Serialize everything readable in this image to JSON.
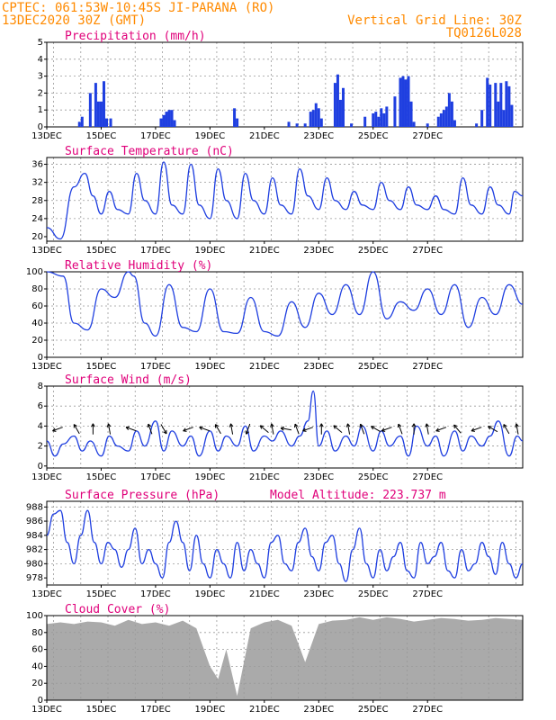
{
  "header": {
    "line1": "CPTEC:   061:53W-10:45S   JI-PARANA (RO)",
    "line2": "13DEC2020 30Z (GMT)",
    "right1": "Vertical Grid Line: 30Z",
    "right2": "TQ0126L028"
  },
  "x_ticks": [
    "13DEC",
    "15DEC",
    "17DEC",
    "19DEC",
    "21DEC",
    "23DEC",
    "25DEC",
    "27DEC"
  ],
  "colors": {
    "line": "#1f3fe0",
    "bar": "#1f3fe0",
    "cloud": "#aaaaaa",
    "title": "#e0007a",
    "header": "#ff8a00"
  },
  "chart_data": [
    {
      "id": "precip",
      "type": "bar",
      "title": "Precipitation (mm/h)",
      "ylim": [
        0,
        5
      ],
      "yticks": [
        0,
        1,
        2,
        3,
        4,
        5
      ],
      "x_days": [
        1.2,
        1.3,
        1.6,
        1.8,
        1.9,
        2.0,
        2.1,
        2.2,
        2.35,
        4.2,
        4.3,
        4.4,
        4.5,
        4.6,
        4.7,
        6.9,
        7.0,
        8.9,
        9.2,
        9.5,
        9.7,
        9.8,
        9.9,
        10.0,
        10.1,
        10.6,
        10.7,
        10.8,
        10.9,
        11.2,
        11.7,
        12.0,
        12.1,
        12.2,
        12.3,
        12.4,
        12.5,
        12.8,
        13.0,
        13.1,
        13.2,
        13.3,
        13.4,
        13.5,
        14.0,
        14.4,
        14.5,
        14.6,
        14.7,
        14.8,
        14.9,
        15.0,
        15.8,
        16.0,
        16.2,
        16.3,
        16.5,
        16.6,
        16.7,
        16.8,
        16.9,
        17.0,
        17.1
      ],
      "values": [
        0.3,
        0.6,
        2.0,
        2.6,
        1.5,
        1.5,
        2.7,
        0.5,
        0.5,
        0.5,
        0.7,
        0.9,
        1.0,
        1.0,
        0.4,
        1.1,
        0.5,
        0.3,
        0.2,
        0.2,
        0.9,
        1.0,
        1.4,
        1.1,
        0.5,
        2.6,
        3.1,
        1.6,
        2.3,
        0.2,
        0.6,
        0.8,
        0.9,
        0.6,
        1.1,
        0.8,
        1.2,
        1.8,
        2.9,
        3.0,
        2.8,
        3.0,
        1.5,
        0.3,
        0.2,
        0.6,
        0.8,
        1.0,
        1.2,
        2.0,
        1.5,
        0.4,
        0.2,
        1.0,
        2.9,
        2.5,
        2.6,
        1.5,
        2.6,
        1.0,
        2.7,
        2.4,
        1.3
      ]
    },
    {
      "id": "temp",
      "type": "line",
      "title": "Surface Temperature (nC)",
      "ylim": [
        19,
        37.5
      ],
      "yticks": [
        20,
        24,
        28,
        32,
        36
      ],
      "x_days": [
        0,
        0.5,
        1.0,
        1.4,
        1.7,
        2.0,
        2.3,
        2.6,
        3.0,
        3.3,
        3.6,
        4.0,
        4.3,
        4.6,
        5.0,
        5.3,
        5.6,
        6.0,
        6.3,
        6.6,
        7.0,
        7.3,
        7.6,
        8.0,
        8.3,
        8.6,
        9.0,
        9.3,
        9.6,
        10.0,
        10.3,
        10.6,
        11.0,
        11.3,
        11.6,
        12.0,
        12.3,
        12.6,
        13.0,
        13.3,
        13.6,
        14.0,
        14.3,
        14.6,
        15.0,
        15.3,
        15.6,
        16.0,
        16.3,
        16.6,
        17.0,
        17.2,
        17.5
      ],
      "values": [
        22,
        19.5,
        31,
        34,
        29,
        25,
        30,
        26,
        25,
        34,
        28,
        25,
        36.5,
        27,
        25,
        36,
        27,
        24,
        35,
        28,
        24,
        34,
        28,
        25,
        33,
        27,
        25,
        35,
        29,
        26,
        33,
        28,
        26,
        30,
        27,
        26,
        32,
        28,
        26,
        31,
        27,
        26,
        29,
        26,
        25,
        33,
        27,
        25,
        31,
        27,
        25,
        30,
        29
      ]
    },
    {
      "id": "rh",
      "type": "line",
      "title": "Relative Humidity (%)",
      "ylim": [
        0,
        100
      ],
      "yticks": [
        0,
        20,
        40,
        60,
        80,
        100
      ],
      "x_days": [
        0,
        0.6,
        1.0,
        1.5,
        2.0,
        2.5,
        3.0,
        3.2,
        3.6,
        4.0,
        4.5,
        5.0,
        5.5,
        6.0,
        6.5,
        7.0,
        7.5,
        8.0,
        8.5,
        9.0,
        9.5,
        10.0,
        10.5,
        11.0,
        11.5,
        12.0,
        12.5,
        13.0,
        13.5,
        14.0,
        14.5,
        15.0,
        15.5,
        16.0,
        16.5,
        17.0,
        17.5
      ],
      "values": [
        100,
        95,
        40,
        32,
        80,
        70,
        100,
        95,
        40,
        25,
        85,
        35,
        30,
        80,
        30,
        28,
        70,
        30,
        25,
        65,
        35,
        75,
        50,
        85,
        50,
        100,
        45,
        65,
        55,
        80,
        50,
        85,
        35,
        70,
        50,
        85,
        62
      ]
    },
    {
      "id": "wind",
      "type": "line",
      "title": "Surface Wind (m/s)",
      "ylim": [
        -0.2,
        8
      ],
      "yticks": [
        0,
        2,
        4,
        6,
        8
      ],
      "x_days": [
        0,
        0.3,
        0.6,
        1.0,
        1.3,
        1.6,
        2.0,
        2.3,
        2.6,
        3.0,
        3.3,
        3.6,
        4.0,
        4.3,
        4.6,
        5.0,
        5.3,
        5.6,
        6.0,
        6.3,
        6.6,
        7.0,
        7.3,
        7.6,
        8.0,
        8.3,
        8.6,
        9.0,
        9.3,
        9.6,
        9.8,
        10.0,
        10.3,
        10.6,
        11.0,
        11.3,
        11.6,
        12.0,
        12.3,
        12.6,
        13.0,
        13.3,
        13.6,
        14.0,
        14.3,
        14.6,
        15.0,
        15.3,
        15.6,
        16.0,
        16.3,
        16.6,
        17.0,
        17.3,
        17.5
      ],
      "values": [
        2.5,
        1.0,
        2.2,
        3.0,
        1.5,
        2.5,
        1.0,
        3.0,
        2.0,
        1.5,
        3.5,
        2.0,
        4.5,
        1.5,
        3.5,
        2.0,
        3.0,
        1.0,
        3.5,
        1.5,
        3.0,
        2.0,
        4.0,
        1.5,
        3.0,
        2.5,
        3.5,
        2.0,
        3.0,
        4.5,
        7.5,
        2.0,
        3.5,
        1.5,
        3.0,
        2.0,
        4.0,
        1.5,
        3.5,
        2.0,
        3.0,
        1.0,
        4.0,
        2.0,
        3.0,
        1.0,
        3.5,
        1.5,
        3.0,
        2.0,
        3.0,
        4.5,
        1.0,
        3.0,
        2.5
      ],
      "arrows_x_days": [
        0.4,
        1.1,
        1.7,
        2.3,
        3.1,
        3.8,
        4.3,
        5.2,
        5.8,
        6.3,
        6.8,
        7.4,
        8.0,
        8.3,
        8.8,
        9.2,
        9.6,
        10.1,
        10.7,
        11.1,
        11.6,
        12.1,
        12.5,
        13.0,
        13.5,
        14.0,
        14.5,
        15.1,
        15.8,
        16.4,
        16.9,
        17.3
      ],
      "arrows_angle_deg": [
        200,
        120,
        90,
        100,
        160,
        110,
        300,
        200,
        160,
        120,
        100,
        250,
        140,
        100,
        170,
        110,
        200,
        90,
        140,
        100,
        110,
        150,
        200,
        110,
        90,
        100,
        200,
        130,
        200,
        150,
        120,
        100
      ]
    },
    {
      "id": "pres",
      "type": "line",
      "title": "Surface Pressure (hPa)",
      "annotation": "Model Altitude: 223.737 m",
      "ylim": [
        977,
        988.8
      ],
      "yticks": [
        978,
        980,
        982,
        984,
        986,
        988
      ],
      "x_days": [
        0,
        0.25,
        0.5,
        0.75,
        1.0,
        1.25,
        1.5,
        1.75,
        2.0,
        2.25,
        2.5,
        2.75,
        3.0,
        3.25,
        3.5,
        3.75,
        4.0,
        4.25,
        4.5,
        4.75,
        5.0,
        5.25,
        5.5,
        5.75,
        6.0,
        6.25,
        6.5,
        6.75,
        7.0,
        7.25,
        7.5,
        7.75,
        8.0,
        8.25,
        8.5,
        8.75,
        9.0,
        9.25,
        9.5,
        9.75,
        10.0,
        10.25,
        10.5,
        10.75,
        11.0,
        11.25,
        11.5,
        11.75,
        12.0,
        12.25,
        12.5,
        12.75,
        13.0,
        13.25,
        13.5,
        13.75,
        14.0,
        14.25,
        14.5,
        14.75,
        15.0,
        15.25,
        15.5,
        15.75,
        16.0,
        16.25,
        16.5,
        16.75,
        17.0,
        17.25,
        17.5
      ],
      "values": [
        984,
        987,
        987.5,
        983,
        980,
        984,
        987.5,
        983,
        980,
        983,
        982,
        979.5,
        982,
        985,
        980,
        982,
        980,
        978,
        983,
        986,
        983,
        979,
        984,
        980,
        978,
        982,
        980,
        978,
        983,
        979,
        982,
        980,
        978,
        983,
        984,
        980,
        979,
        983,
        985,
        981,
        979,
        983,
        984,
        980,
        977.5,
        982,
        985,
        980,
        978,
        982,
        979,
        981,
        983,
        979,
        978,
        983,
        980,
        981,
        983,
        979,
        978,
        982,
        979,
        980,
        983,
        981,
        978.5,
        983,
        980,
        978,
        980
      ]
    },
    {
      "id": "cloud",
      "type": "area",
      "title": "Cloud Cover (%)",
      "ylim": [
        0,
        100
      ],
      "yticks": [
        0,
        20,
        40,
        60,
        80,
        100
      ],
      "x_days": [
        0,
        0.5,
        1.0,
        1.5,
        2.0,
        2.5,
        3.0,
        3.5,
        4.0,
        4.5,
        5.0,
        5.5,
        6.0,
        6.3,
        6.6,
        7.0,
        7.5,
        8.0,
        8.5,
        9.0,
        9.5,
        10.0,
        10.5,
        11.0,
        11.5,
        12.0,
        12.5,
        13.0,
        13.5,
        14.0,
        14.5,
        15.0,
        15.5,
        16.0,
        16.5,
        17.0,
        17.5
      ],
      "values": [
        90,
        92,
        90,
        93,
        92,
        88,
        95,
        90,
        92,
        88,
        94,
        85,
        40,
        25,
        60,
        5,
        85,
        92,
        95,
        88,
        45,
        90,
        94,
        95,
        98,
        95,
        98,
        96,
        93,
        95,
        97,
        96,
        94,
        95,
        97,
        96,
        95
      ]
    }
  ]
}
